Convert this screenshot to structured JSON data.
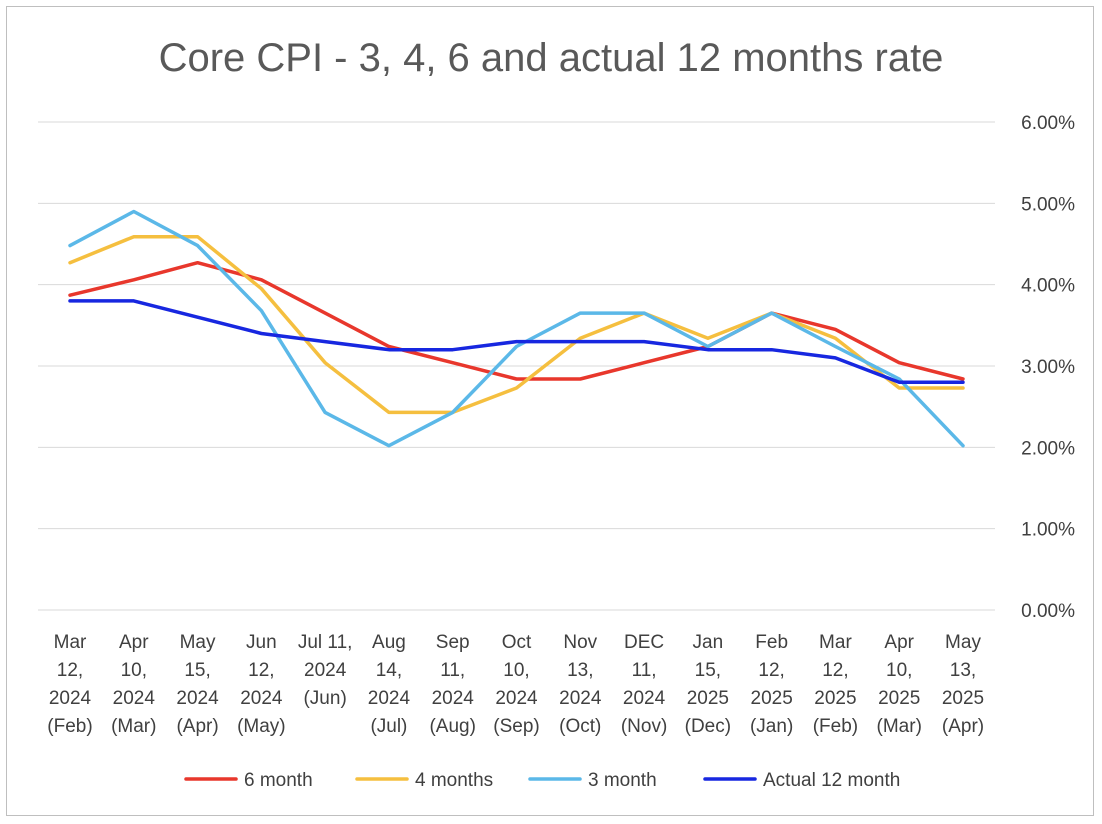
{
  "chart_data": {
    "type": "line",
    "title": "Core CPI - 3, 4, 6 and actual 12 months rate",
    "categories": [
      [
        "Mar",
        "12,",
        "2024",
        "(Feb)"
      ],
      [
        "Apr",
        "10,",
        "2024",
        "(Mar)"
      ],
      [
        "May",
        "15,",
        "2024",
        "(Apr)"
      ],
      [
        "Jun",
        "12,",
        "2024",
        "(May)"
      ],
      [
        "Jul 11,",
        "2024",
        "(Jun)"
      ],
      [
        "Aug",
        "14,",
        "2024",
        "(Jul)"
      ],
      [
        "Sep",
        "11,",
        "2024",
        "(Aug)"
      ],
      [
        "Oct",
        "10,",
        "2024",
        "(Sep)"
      ],
      [
        "Nov",
        "13,",
        "2024",
        "(Oct)"
      ],
      [
        "DEC",
        "11,",
        "2024",
        "(Nov)"
      ],
      [
        "Jan",
        "15,",
        "2025",
        "(Dec)"
      ],
      [
        "Feb",
        "12,",
        "2025",
        "(Jan)"
      ],
      [
        "Mar",
        "12,",
        "2025",
        "(Feb)"
      ],
      [
        "Apr",
        "10,",
        "2025",
        "(Mar)"
      ],
      [
        "May",
        "13,",
        "2025",
        "(Apr)"
      ]
    ],
    "y_ticks": [
      "0.00%",
      "1.00%",
      "2.00%",
      "3.00%",
      "4.00%",
      "5.00%",
      "6.00%"
    ],
    "ylim": [
      0,
      6
    ],
    "y_axis_position": "right",
    "grid": true,
    "legend_position": "bottom",
    "series": [
      {
        "name": "6 month",
        "color": "#e8372c",
        "values": [
          3.87,
          4.06,
          4.27,
          4.06,
          3.65,
          3.24,
          3.04,
          2.84,
          2.84,
          3.04,
          3.24,
          3.65,
          3.45,
          3.04,
          2.84
        ]
      },
      {
        "name": "4 months",
        "color": "#f5bf3f",
        "values": [
          4.27,
          4.59,
          4.59,
          3.95,
          3.04,
          2.43,
          2.43,
          2.73,
          3.34,
          3.65,
          3.34,
          3.65,
          3.34,
          2.73,
          2.73
        ]
      },
      {
        "name": "3 month",
        "color": "#5bb8e8",
        "values": [
          4.48,
          4.9,
          4.48,
          3.68,
          2.43,
          2.02,
          2.43,
          3.24,
          3.65,
          3.65,
          3.24,
          3.65,
          3.24,
          2.84,
          2.02
        ]
      },
      {
        "name": "Actual 12 month",
        "color": "#1727e0",
        "values": [
          3.8,
          3.8,
          3.6,
          3.4,
          3.3,
          3.2,
          3.2,
          3.3,
          3.3,
          3.3,
          3.2,
          3.2,
          3.1,
          2.8,
          2.8
        ]
      }
    ]
  }
}
